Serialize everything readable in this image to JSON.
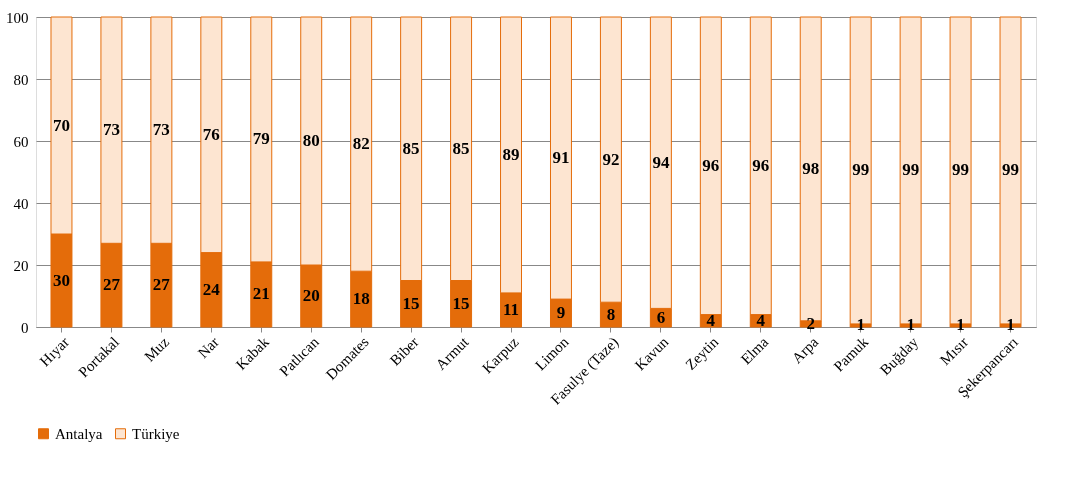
{
  "chart_data": {
    "type": "bar",
    "stacked": true,
    "data_labels": true,
    "categories": [
      "Hıyar",
      "Portakal",
      "Muz",
      "Nar",
      "Kabak",
      "Patlıcan",
      "Domates",
      "Biber",
      "Armut",
      "Karpuz",
      "Limon",
      "Fasulye (Taze)",
      "Kavun",
      "Zeytin",
      "Elma",
      "Arpa",
      "Pamuk",
      "Buğday",
      "Mısır",
      "Şekerpancarı"
    ],
    "series": [
      {
        "name": "Antalya",
        "color": "#e46c0a",
        "values": [
          30,
          27,
          27,
          24,
          21,
          20,
          18,
          15,
          15,
          11,
          9,
          8,
          6,
          4,
          4,
          2,
          1,
          1,
          1,
          1
        ]
      },
      {
        "name": "Türkiye",
        "color": "#fde5d1",
        "values": [
          70,
          73,
          73,
          76,
          79,
          80,
          82,
          85,
          85,
          89,
          91,
          92,
          94,
          96,
          96,
          98,
          99,
          99,
          99,
          99
        ]
      }
    ],
    "ylim": [
      0,
      100
    ],
    "yticks": [
      0,
      20,
      40,
      60,
      80,
      100
    ],
    "grid": "y",
    "legend": "bottom"
  }
}
